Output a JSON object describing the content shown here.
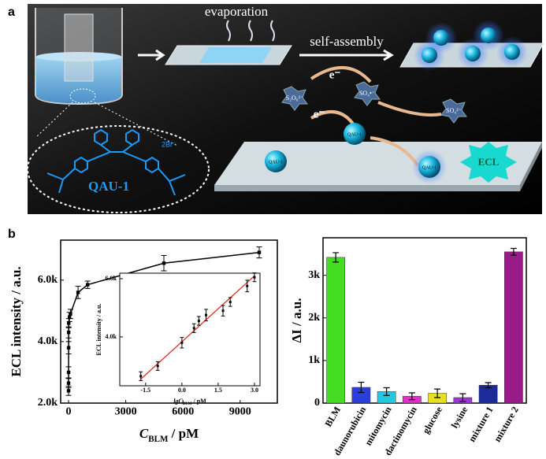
{
  "panel_a": {
    "label": "a",
    "evaporation": "evaporation",
    "self_assembly": "self-assembly",
    "electron_1": "e⁻",
    "electron_2": "e⁻",
    "persulfate": "S₂O₈²⁻",
    "radical": "SO₄•⁻",
    "sulfate": "SO₄²⁻",
    "counter_ion": "2Br⁻",
    "molecule": "QAU-1",
    "sphere_1": "QAU-1",
    "sphere_2": "QAU-1",
    "sphere_3": "QAU-1",
    "ecl": "ECL"
  },
  "panel_b": {
    "label": "b"
  },
  "chart_data": [
    {
      "type": "line",
      "xlabel": [
        "C",
        "BLM",
        " / pM"
      ],
      "ylabel": "ECL intensity / a.u.",
      "x": [
        0.02,
        0.1,
        1,
        3,
        5,
        10,
        50,
        100,
        500,
        1000,
        5000,
        10000
      ],
      "series": [
        {
          "color": "#000000",
          "values": [
            2400,
            2650,
            3000,
            3800,
            4300,
            4600,
            4800,
            4900,
            5600,
            5850,
            6550,
            6900
          ],
          "errors": [
            150,
            150,
            180,
            200,
            180,
            150,
            150,
            150,
            200,
            120,
            250,
            180
          ]
        }
      ],
      "xlim": [
        -413,
        10950
      ],
      "ylim": [
        2000,
        7300
      ],
      "xticks": [
        0,
        3000,
        6000,
        9000
      ],
      "yticks": [
        {
          "value": 2000,
          "label": "2.0k"
        },
        {
          "value": 4000,
          "label": "4.0k"
        },
        {
          "value": 6000,
          "label": "6.0k"
        }
      ]
    },
    {
      "type": "line",
      "xlabel": [
        "lgC",
        "BLM",
        " / pM"
      ],
      "ylabel": "ECL intensity / a.u.",
      "x": [
        -1.7,
        -1,
        0,
        0.5,
        0.7,
        1,
        1.7,
        2,
        2.7,
        3
      ],
      "series": [
        {
          "color": "#000000",
          "values": [
            2650,
            3000,
            3800,
            4300,
            4550,
            4750,
            4900,
            5200,
            5750,
            6050
          ],
          "errors": [
            150,
            150,
            180,
            150,
            150,
            200,
            180,
            150,
            200,
            150
          ]
        }
      ],
      "fit": {
        "color": "#e03020",
        "x": [
          -1.7,
          3
        ],
        "values": [
          2550,
          6100
        ]
      },
      "xlim": [
        -2.57,
        3.23
      ],
      "ylim": [
        2320,
        6190
      ],
      "xticks": [
        -1.5,
        {
          "value": 0,
          "label": "0.0"
        },
        1.5,
        {
          "value": 3,
          "label": "3.0"
        }
      ],
      "yticks": [
        {
          "value": 4000,
          "label": "4.0k"
        },
        {
          "value": 6000,
          "label": "6.0k"
        }
      ]
    },
    {
      "type": "bar",
      "ylabel": "ΔI / a.u.",
      "categories": [
        "BLM",
        "daunorubicin",
        "mitomycin",
        "dactinomycin",
        "glucose",
        "lysine",
        "mixture 1",
        "mixture 2"
      ],
      "values": [
        3420,
        370,
        270,
        160,
        230,
        130,
        420,
        3550
      ],
      "errors": [
        110,
        120,
        90,
        80,
        100,
        90,
        60,
        80
      ],
      "colors": [
        "#44dd22",
        "#2a3fd8",
        "#22c8e0",
        "#e030c8",
        "#e8e020",
        "#9a38d0",
        "#1c2a9a",
        "#9a1a8a"
      ],
      "ylim": [
        0,
        3880
      ],
      "yticks": [
        0,
        {
          "value": 1000,
          "label": "1k"
        },
        {
          "value": 2000,
          "label": "2k"
        },
        {
          "value": 3000,
          "label": "3k"
        }
      ]
    }
  ]
}
